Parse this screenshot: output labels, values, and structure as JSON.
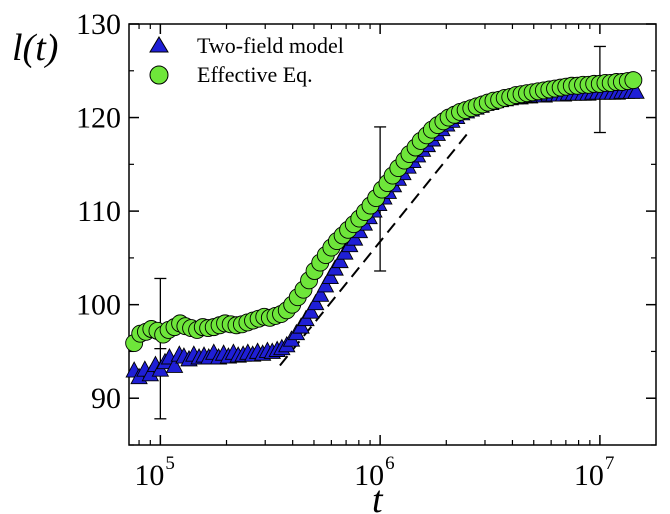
{
  "chart_data": {
    "type": "scatter",
    "xscale": "log",
    "xlim": [
      72000,
      18000000
    ],
    "ylim": [
      85,
      130
    ],
    "xlabel": "t",
    "ylabel": "l(t)",
    "x_ticks": [
      {
        "value": 100000,
        "base": "10",
        "exp": "5"
      },
      {
        "value": 1000000,
        "base": "10",
        "exp": "6"
      },
      {
        "value": 10000000,
        "base": "10",
        "exp": "7"
      }
    ],
    "y_ticks": [
      {
        "value": 90,
        "label": "90"
      },
      {
        "value": 100,
        "label": "100"
      },
      {
        "value": 110,
        "label": "110"
      },
      {
        "value": 120,
        "label": "120"
      },
      {
        "value": 130,
        "label": "130"
      }
    ],
    "legend": {
      "placement": "top-left"
    },
    "series": [
      {
        "name": "Two-field model",
        "marker": "triangle",
        "color": "#1f1fd6",
        "points": [
          [
            76000,
            92.9
          ],
          [
            80000,
            92.2
          ],
          [
            85000,
            93.0
          ],
          [
            90000,
            92.5
          ],
          [
            95000,
            93.5
          ],
          [
            100000,
            93.0
          ],
          [
            105000,
            93.8
          ],
          [
            110000,
            94.3
          ],
          [
            116000,
            93.4
          ],
          [
            122000,
            94.6
          ],
          [
            128000,
            94.4
          ],
          [
            135000,
            94.1
          ],
          [
            142000,
            94.6
          ],
          [
            150000,
            94.3
          ],
          [
            158000,
            94.5
          ],
          [
            166000,
            94.3
          ],
          [
            175000,
            94.8
          ],
          [
            184000,
            94.3
          ],
          [
            194000,
            94.7
          ],
          [
            204000,
            94.4
          ],
          [
            215000,
            94.8
          ],
          [
            226000,
            94.5
          ],
          [
            238000,
            94.6
          ],
          [
            250000,
            94.8
          ],
          [
            263000,
            94.6
          ],
          [
            277000,
            94.9
          ],
          [
            292000,
            94.7
          ],
          [
            307000,
            95.0
          ],
          [
            323000,
            94.9
          ],
          [
            340000,
            95.1
          ],
          [
            357000,
            95.3
          ],
          [
            376000,
            95.6
          ],
          [
            395000,
            96.2
          ],
          [
            416000,
            96.9
          ],
          [
            437000,
            97.6
          ],
          [
            460000,
            98.4
          ],
          [
            484000,
            99.2
          ],
          [
            509000,
            100.1
          ],
          [
            536000,
            101.0
          ],
          [
            564000,
            102.0
          ],
          [
            593000,
            102.9
          ],
          [
            624000,
            103.8
          ],
          [
            657000,
            104.6
          ],
          [
            691000,
            105.5
          ],
          [
            727000,
            106.3
          ],
          [
            765000,
            107.0
          ],
          [
            805000,
            107.8
          ],
          [
            847000,
            108.6
          ],
          [
            891000,
            109.3
          ],
          [
            937000,
            110.0
          ],
          [
            986000,
            110.7
          ],
          [
            1040000,
            111.4
          ],
          [
            1090000,
            112.0
          ],
          [
            1150000,
            112.7
          ],
          [
            1210000,
            113.4
          ],
          [
            1270000,
            114.0
          ],
          [
            1340000,
            114.7
          ],
          [
            1410000,
            115.3
          ],
          [
            1480000,
            115.9
          ],
          [
            1560000,
            116.5
          ],
          [
            1640000,
            117.0
          ],
          [
            1730000,
            117.6
          ],
          [
            1820000,
            118.2
          ],
          [
            1910000,
            118.7
          ],
          [
            2010000,
            119.2
          ],
          [
            2120000,
            119.6
          ],
          [
            2230000,
            120.0
          ],
          [
            2350000,
            120.4
          ],
          [
            2470000,
            120.6
          ],
          [
            2600000,
            120.8
          ],
          [
            2730000,
            121.0
          ],
          [
            2880000,
            121.2
          ],
          [
            3030000,
            121.4
          ],
          [
            3190000,
            121.5
          ],
          [
            3350000,
            121.7
          ],
          [
            3530000,
            121.8
          ],
          [
            3710000,
            121.9
          ],
          [
            3910000,
            122.0
          ],
          [
            4110000,
            122.1
          ],
          [
            4330000,
            122.1
          ],
          [
            4550000,
            122.2
          ],
          [
            4790000,
            122.2
          ],
          [
            5040000,
            122.3
          ],
          [
            5300000,
            122.3
          ],
          [
            5580000,
            122.3
          ],
          [
            5870000,
            122.4
          ],
          [
            6170000,
            122.4
          ],
          [
            6500000,
            122.4
          ],
          [
            6830000,
            122.4
          ],
          [
            7190000,
            122.5
          ],
          [
            7570000,
            122.5
          ],
          [
            7960000,
            122.5
          ],
          [
            8380000,
            122.5
          ],
          [
            8820000,
            122.5
          ],
          [
            9280000,
            122.6
          ],
          [
            9760000,
            122.6
          ],
          [
            10300000,
            122.6
          ],
          [
            10800000,
            122.6
          ],
          [
            11400000,
            122.6
          ],
          [
            12000000,
            122.6
          ],
          [
            12600000,
            122.7
          ],
          [
            13200000,
            122.7
          ],
          [
            13900000,
            122.7
          ],
          [
            14600000,
            122.7
          ]
        ]
      },
      {
        "name": "Effective Eq.",
        "marker": "circle",
        "color": "#6ee63a",
        "points": [
          [
            76000,
            95.9
          ],
          [
            81000,
            96.9
          ],
          [
            86000,
            97.1
          ],
          [
            91000,
            97.4
          ],
          [
            97000,
            97.2
          ],
          [
            103000,
            96.8
          ],
          [
            109000,
            97.3
          ],
          [
            116000,
            97.6
          ],
          [
            123000,
            98.0
          ],
          [
            130000,
            97.7
          ],
          [
            138000,
            97.5
          ],
          [
            147000,
            97.3
          ],
          [
            156000,
            97.6
          ],
          [
            165000,
            97.5
          ],
          [
            175000,
            97.6
          ],
          [
            186000,
            97.8
          ],
          [
            197000,
            98.0
          ],
          [
            209000,
            97.9
          ],
          [
            222000,
            97.8
          ],
          [
            235000,
            97.9
          ],
          [
            249000,
            98.1
          ],
          [
            264000,
            98.3
          ],
          [
            280000,
            98.5
          ],
          [
            297000,
            98.7
          ],
          [
            315000,
            98.6
          ],
          [
            334000,
            98.8
          ],
          [
            354000,
            99.0
          ],
          [
            376000,
            99.4
          ],
          [
            398000,
            100.0
          ],
          [
            422000,
            100.8
          ],
          [
            448000,
            101.6
          ],
          [
            475000,
            102.6
          ],
          [
            503000,
            103.6
          ],
          [
            534000,
            104.5
          ],
          [
            566000,
            105.3
          ],
          [
            600000,
            106.1
          ],
          [
            636000,
            106.8
          ],
          [
            675000,
            107.4
          ],
          [
            715000,
            108.0
          ],
          [
            759000,
            108.6
          ],
          [
            804000,
            109.2
          ],
          [
            853000,
            109.9
          ],
          [
            904000,
            110.6
          ],
          [
            959000,
            111.4
          ],
          [
            1020000,
            112.3
          ],
          [
            1080000,
            113.0
          ],
          [
            1140000,
            113.8
          ],
          [
            1210000,
            114.6
          ],
          [
            1290000,
            115.4
          ],
          [
            1360000,
            116.1
          ],
          [
            1450000,
            116.8
          ],
          [
            1530000,
            117.5
          ],
          [
            1630000,
            118.1
          ],
          [
            1720000,
            118.7
          ],
          [
            1830000,
            119.2
          ],
          [
            1940000,
            119.6
          ],
          [
            2050000,
            120.0
          ],
          [
            2180000,
            120.3
          ],
          [
            2310000,
            120.6
          ],
          [
            2450000,
            120.8
          ],
          [
            2600000,
            121.0
          ],
          [
            2750000,
            121.2
          ],
          [
            2920000,
            121.4
          ],
          [
            3090000,
            121.6
          ],
          [
            3280000,
            121.8
          ],
          [
            3480000,
            121.9
          ],
          [
            3690000,
            122.1
          ],
          [
            3910000,
            122.2
          ],
          [
            4150000,
            122.4
          ],
          [
            4400000,
            122.5
          ],
          [
            4660000,
            122.6
          ],
          [
            4940000,
            122.7
          ],
          [
            5240000,
            122.8
          ],
          [
            5560000,
            122.9
          ],
          [
            5890000,
            123.0
          ],
          [
            6250000,
            123.1
          ],
          [
            6630000,
            123.2
          ],
          [
            7030000,
            123.3
          ],
          [
            7450000,
            123.4
          ],
          [
            7900000,
            123.4
          ],
          [
            8380000,
            123.5
          ],
          [
            8880000,
            123.5
          ],
          [
            9420000,
            123.6
          ],
          [
            9990000,
            123.6
          ],
          [
            10600000,
            123.7
          ],
          [
            11200000,
            123.7
          ],
          [
            11900000,
            123.8
          ],
          [
            12600000,
            123.8
          ],
          [
            13400000,
            123.9
          ],
          [
            14200000,
            124.0
          ]
        ]
      }
    ],
    "error_bars": [
      {
        "x": 100000,
        "y": 95.3,
        "low": 87.8,
        "high": 102.8
      },
      {
        "x": 1000000,
        "y": 111.3,
        "low": 103.6,
        "high": 119.0
      },
      {
        "x": 10000000,
        "y": 123.0,
        "low": 118.4,
        "high": 127.6
      }
    ],
    "guide_line": {
      "style": "dashed",
      "points": [
        [
          350000,
          93.5
        ],
        [
          2500000,
          118.3
        ]
      ]
    }
  }
}
